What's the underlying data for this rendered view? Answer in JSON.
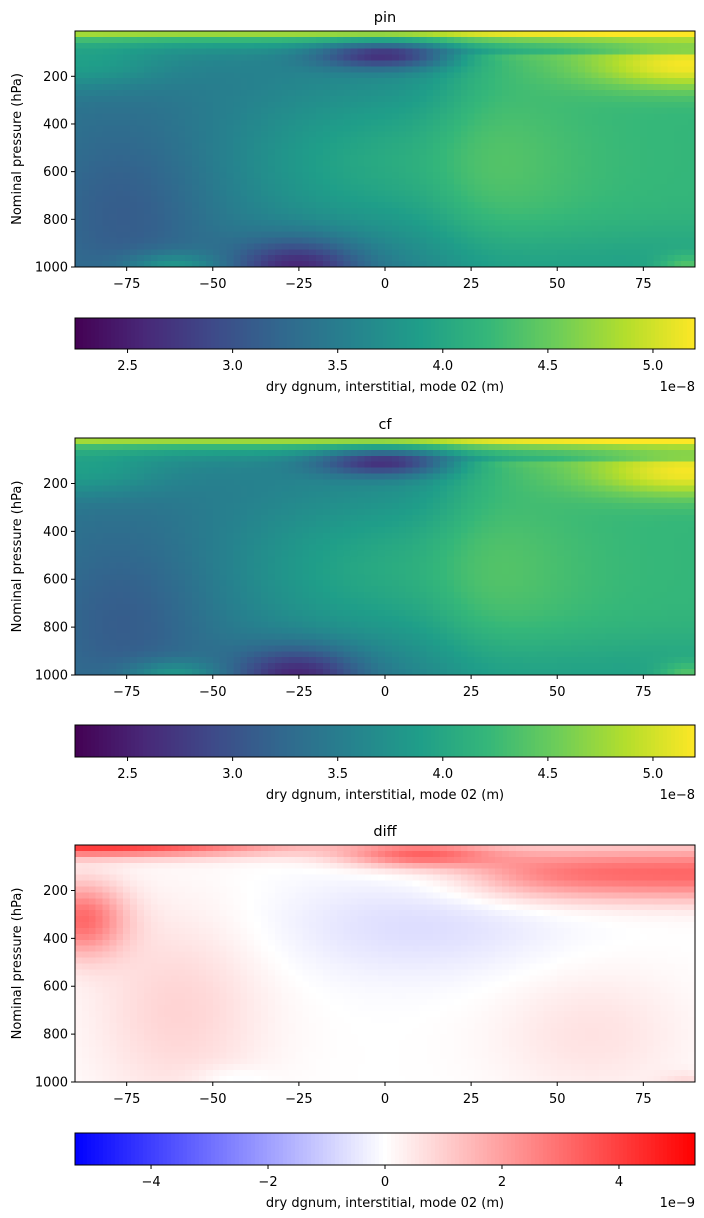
{
  "chart_data": [
    {
      "type": "heatmap",
      "title": "pin",
      "xlabel": "",
      "ylabel": "Nominal pressure (hPa)",
      "xlim": [
        -90,
        90
      ],
      "ylim": [
        1000,
        10
      ],
      "x_ticks": [
        -75,
        -50,
        -25,
        0,
        25,
        50,
        75
      ],
      "y_ticks": [
        200,
        400,
        600,
        800,
        1000
      ],
      "colormap": "viridis",
      "colorbar": {
        "label": "dry dgnum, interstitial, mode 02 (m)",
        "range": [
          2.25,
          5.2
        ],
        "ticks": [
          "2.5",
          "3.0",
          "3.5",
          "4.0",
          "4.5",
          "5.0"
        ],
        "tick_values": [
          2.5,
          3.0,
          3.5,
          4.0,
          4.5,
          5.0
        ],
        "offset_label": "1e−8"
      }
    },
    {
      "type": "heatmap",
      "title": "cf",
      "xlabel": "",
      "ylabel": "Nominal pressure (hPa)",
      "xlim": [
        -90,
        90
      ],
      "ylim": [
        1000,
        10
      ],
      "x_ticks": [
        -75,
        -50,
        -25,
        0,
        25,
        50,
        75
      ],
      "y_ticks": [
        200,
        400,
        600,
        800,
        1000
      ],
      "colormap": "viridis",
      "colorbar": {
        "label": "dry dgnum, interstitial, mode 02 (m)",
        "range": [
          2.25,
          5.2
        ],
        "ticks": [
          "2.5",
          "3.0",
          "3.5",
          "4.0",
          "4.5",
          "5.0"
        ],
        "tick_values": [
          2.5,
          3.0,
          3.5,
          4.0,
          4.5,
          5.0
        ],
        "offset_label": "1e−8"
      }
    },
    {
      "type": "heatmap",
      "title": "diff",
      "xlabel": "",
      "ylabel": "Nominal pressure (hPa)",
      "xlim": [
        -90,
        90
      ],
      "ylim": [
        1000,
        10
      ],
      "x_ticks": [
        -75,
        -50,
        -25,
        0,
        25,
        50,
        75
      ],
      "y_ticks": [
        200,
        400,
        600,
        800,
        1000
      ],
      "colormap": "bwr",
      "colorbar": {
        "label": "dry dgnum, interstitial, mode 02 (m)",
        "range": [
          -5.3,
          5.3
        ],
        "ticks": [
          "−4",
          "−2",
          "0",
          "2",
          "4"
        ],
        "tick_values": [
          -4,
          -2,
          0,
          2,
          4
        ],
        "offset_label": "1e−9"
      }
    }
  ]
}
